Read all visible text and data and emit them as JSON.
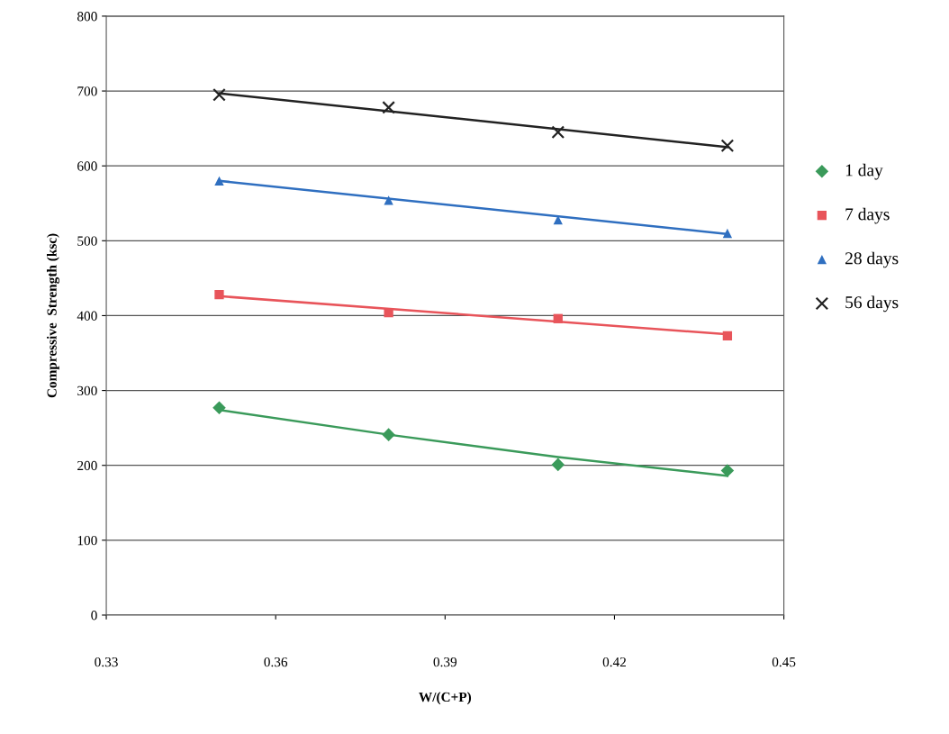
{
  "chart_data": {
    "type": "scatter",
    "xlabel": "W/(C+P)",
    "ylabel": "Compressive  Strength (ksc)",
    "xlim": [
      0.33,
      0.45
    ],
    "xticks": [
      0.33,
      0.36,
      0.39,
      0.42,
      0.45
    ],
    "ylim": [
      0,
      800
    ],
    "yticks": [
      0,
      100,
      200,
      300,
      400,
      500,
      600,
      700,
      800
    ],
    "grid": "y",
    "legend": "right",
    "series": [
      {
        "name": "1 day",
        "color": "#3a9a5a",
        "marker": "diamond",
        "x": [
          0.35,
          0.38,
          0.41,
          0.44
        ],
        "values": [
          277,
          241,
          201,
          193
        ]
      },
      {
        "name": "7 days",
        "color": "#e8545a",
        "marker": "square",
        "x": [
          0.35,
          0.38,
          0.41,
          0.44
        ],
        "values": [
          428,
          404,
          396,
          373
        ]
      },
      {
        "name": "28 days",
        "color": "#2f6fc0",
        "marker": "triangle",
        "x": [
          0.35,
          0.38,
          0.41,
          0.44
        ],
        "values": [
          580,
          554,
          528,
          510
        ]
      },
      {
        "name": "56 days",
        "color": "#222222",
        "marker": "cross",
        "x": [
          0.35,
          0.38,
          0.41,
          0.44
        ],
        "values": [
          695,
          678,
          645,
          627
        ]
      },
      {
        "type": "line",
        "color": "#3a9a5a",
        "marker": "none",
        "x": [
          0.35,
          0.38,
          0.41,
          0.44
        ],
        "values": [
          274,
          241,
          211,
          186
        ]
      },
      {
        "type": "line",
        "color": "#e8545a",
        "marker": "none",
        "x": [
          0.35,
          0.44
        ],
        "values": [
          426,
          375
        ]
      },
      {
        "type": "line",
        "color": "#2f6fc0",
        "marker": "none",
        "x": [
          0.35,
          0.44
        ],
        "values": [
          580,
          509
        ]
      },
      {
        "type": "line",
        "color": "#222222",
        "marker": "none",
        "x": [
          0.35,
          0.44
        ],
        "values": [
          697,
          625
        ]
      }
    ]
  }
}
